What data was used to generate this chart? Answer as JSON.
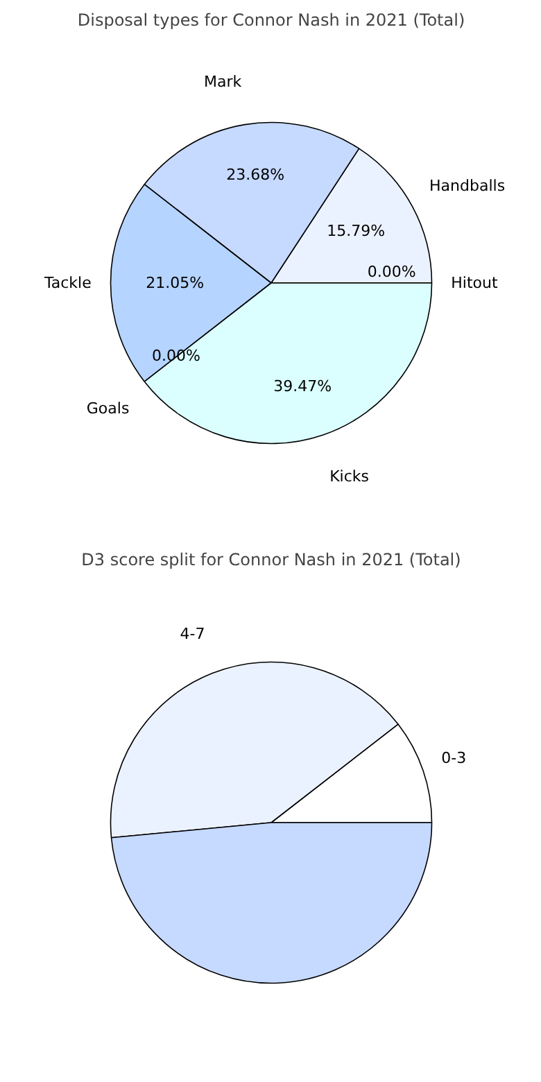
{
  "chart_data": [
    {
      "type": "pie",
      "title": "Disposal types for Connor Nash in 2021 (Total)",
      "categories": [
        "Hitout",
        "Handballs",
        "Mark",
        "Tackle",
        "Goals",
        "Kicks"
      ],
      "values": [
        0.0,
        15.79,
        23.68,
        21.05,
        0.0,
        39.47
      ],
      "colors": [
        "#ebf2ff",
        "#ebf2ff",
        "#c6d9ff",
        "#b5d4ff",
        "#c6d9ff",
        "#dbffff"
      ],
      "value_labels": [
        "0.00%",
        "15.79%",
        "23.68%",
        "21.05%",
        "0.00%",
        "39.47%"
      ]
    },
    {
      "type": "pie",
      "title": "D3 score split for Connor Nash in 2021 (Total)",
      "categories": [
        "0-3",
        "4-7",
        null
      ],
      "values": [
        10.5,
        41,
        48.5
      ],
      "colors": [
        "#ffffff",
        "#ebf2ff",
        "#c6d9ff"
      ]
    }
  ]
}
